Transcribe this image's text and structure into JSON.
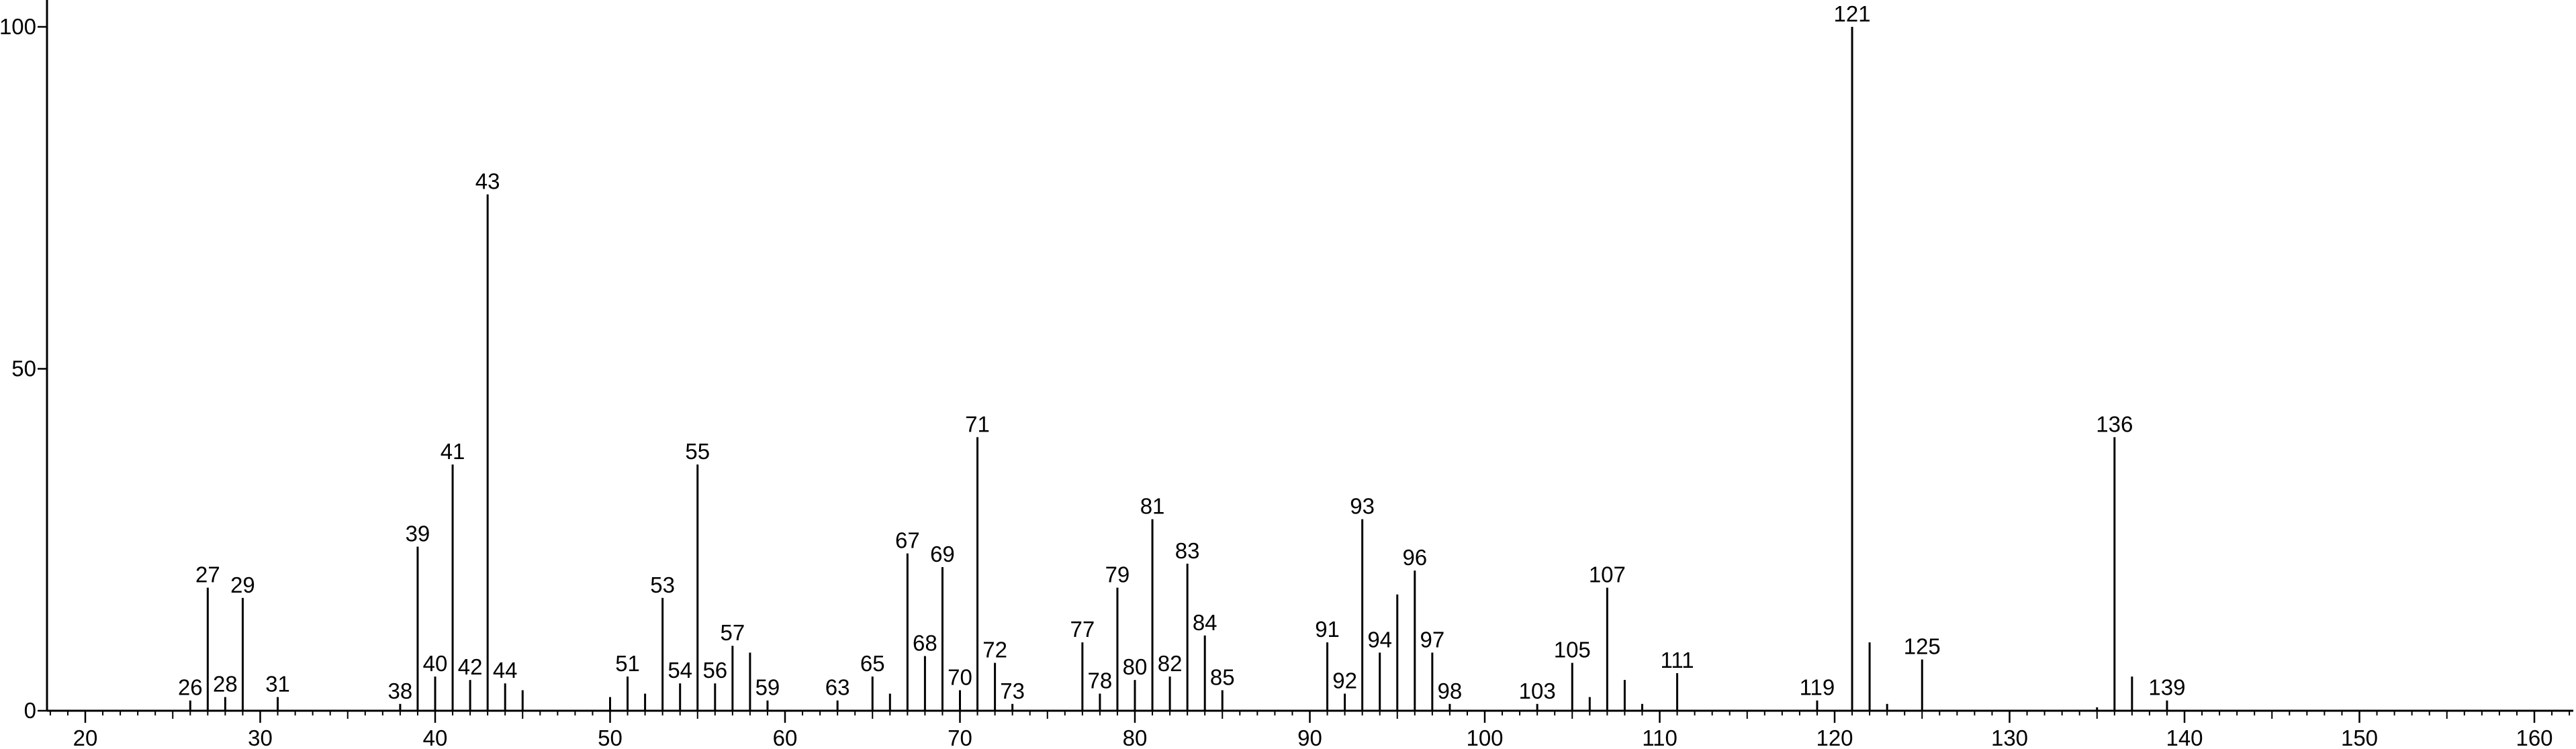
{
  "chart_data": {
    "type": "bar",
    "title": "",
    "xlabel": "",
    "ylabel": "",
    "xlim": [
      18,
      162
    ],
    "ylim": [
      0,
      105
    ],
    "x_ticks": [
      20,
      30,
      40,
      50,
      60,
      70,
      80,
      90,
      100,
      110,
      120,
      130,
      140,
      150,
      160
    ],
    "y_ticks": [
      0,
      50,
      100
    ],
    "grid": false,
    "legend": "none",
    "line_color": "#000000",
    "peaks": [
      {
        "mz": 26,
        "intensity": 1.5,
        "label": "26"
      },
      {
        "mz": 27,
        "intensity": 18,
        "label": "27"
      },
      {
        "mz": 28,
        "intensity": 2,
        "label": "28"
      },
      {
        "mz": 29,
        "intensity": 16.5,
        "label": "29"
      },
      {
        "mz": 31,
        "intensity": 2,
        "label": "31"
      },
      {
        "mz": 38,
        "intensity": 1,
        "label": "38"
      },
      {
        "mz": 39,
        "intensity": 24,
        "label": "39"
      },
      {
        "mz": 40,
        "intensity": 5,
        "label": "40"
      },
      {
        "mz": 41,
        "intensity": 36,
        "label": "41"
      },
      {
        "mz": 42,
        "intensity": 4.5,
        "label": "42"
      },
      {
        "mz": 43,
        "intensity": 75.5,
        "label": "43"
      },
      {
        "mz": 44,
        "intensity": 4,
        "label": "44"
      },
      {
        "mz": 45,
        "intensity": 3
      },
      {
        "mz": 50,
        "intensity": 2
      },
      {
        "mz": 51,
        "intensity": 5,
        "label": "51"
      },
      {
        "mz": 52,
        "intensity": 2.5
      },
      {
        "mz": 53,
        "intensity": 16.5,
        "label": "53"
      },
      {
        "mz": 54,
        "intensity": 4,
        "label": "54"
      },
      {
        "mz": 55,
        "intensity": 36,
        "label": "55"
      },
      {
        "mz": 56,
        "intensity": 4,
        "label": "56"
      },
      {
        "mz": 57,
        "intensity": 9.5,
        "label": "57"
      },
      {
        "mz": 58,
        "intensity": 8.5
      },
      {
        "mz": 59,
        "intensity": 1.5,
        "label": "59"
      },
      {
        "mz": 63,
        "intensity": 1.5,
        "label": "63"
      },
      {
        "mz": 65,
        "intensity": 5,
        "label": "65"
      },
      {
        "mz": 66,
        "intensity": 2.5
      },
      {
        "mz": 67,
        "intensity": 23,
        "label": "67"
      },
      {
        "mz": 68,
        "intensity": 8,
        "label": "68"
      },
      {
        "mz": 69,
        "intensity": 21,
        "label": "69"
      },
      {
        "mz": 70,
        "intensity": 3,
        "label": "70"
      },
      {
        "mz": 71,
        "intensity": 40,
        "label": "71"
      },
      {
        "mz": 72,
        "intensity": 7,
        "label": "72"
      },
      {
        "mz": 73,
        "intensity": 1,
        "label": "73"
      },
      {
        "mz": 77,
        "intensity": 10,
        "label": "77"
      },
      {
        "mz": 78,
        "intensity": 2.5,
        "label": "78"
      },
      {
        "mz": 79,
        "intensity": 18,
        "label": "79"
      },
      {
        "mz": 80,
        "intensity": 4.5,
        "label": "80"
      },
      {
        "mz": 81,
        "intensity": 28,
        "label": "81"
      },
      {
        "mz": 82,
        "intensity": 5,
        "label": "82"
      },
      {
        "mz": 83,
        "intensity": 21.5,
        "label": "83"
      },
      {
        "mz": 84,
        "intensity": 11,
        "label": "84"
      },
      {
        "mz": 85,
        "intensity": 3,
        "label": "85"
      },
      {
        "mz": 91,
        "intensity": 10,
        "label": "91"
      },
      {
        "mz": 92,
        "intensity": 2.5,
        "label": "92"
      },
      {
        "mz": 93,
        "intensity": 28,
        "label": "93"
      },
      {
        "mz": 94,
        "intensity": 8.5,
        "label": "94"
      },
      {
        "mz": 95,
        "intensity": 17
      },
      {
        "mz": 96,
        "intensity": 20.5,
        "label": "96"
      },
      {
        "mz": 97,
        "intensity": 8.5,
        "label": "97"
      },
      {
        "mz": 98,
        "intensity": 1,
        "label": "98"
      },
      {
        "mz": 103,
        "intensity": 1,
        "label": "103"
      },
      {
        "mz": 105,
        "intensity": 7,
        "label": "105"
      },
      {
        "mz": 106,
        "intensity": 2
      },
      {
        "mz": 107,
        "intensity": 18,
        "label": "107"
      },
      {
        "mz": 108,
        "intensity": 4.5
      },
      {
        "mz": 109,
        "intensity": 1
      },
      {
        "mz": 111,
        "intensity": 5.5,
        "label": "111"
      },
      {
        "mz": 119,
        "intensity": 1.5,
        "label": "119"
      },
      {
        "mz": 121,
        "intensity": 100,
        "label": "121"
      },
      {
        "mz": 122,
        "intensity": 10
      },
      {
        "mz": 123,
        "intensity": 1
      },
      {
        "mz": 125,
        "intensity": 7.5,
        "label": "125"
      },
      {
        "mz": 135,
        "intensity": 0.5
      },
      {
        "mz": 136,
        "intensity": 40,
        "label": "136"
      },
      {
        "mz": 137,
        "intensity": 5
      },
      {
        "mz": 139,
        "intensity": 1.5,
        "label": "139"
      }
    ]
  }
}
